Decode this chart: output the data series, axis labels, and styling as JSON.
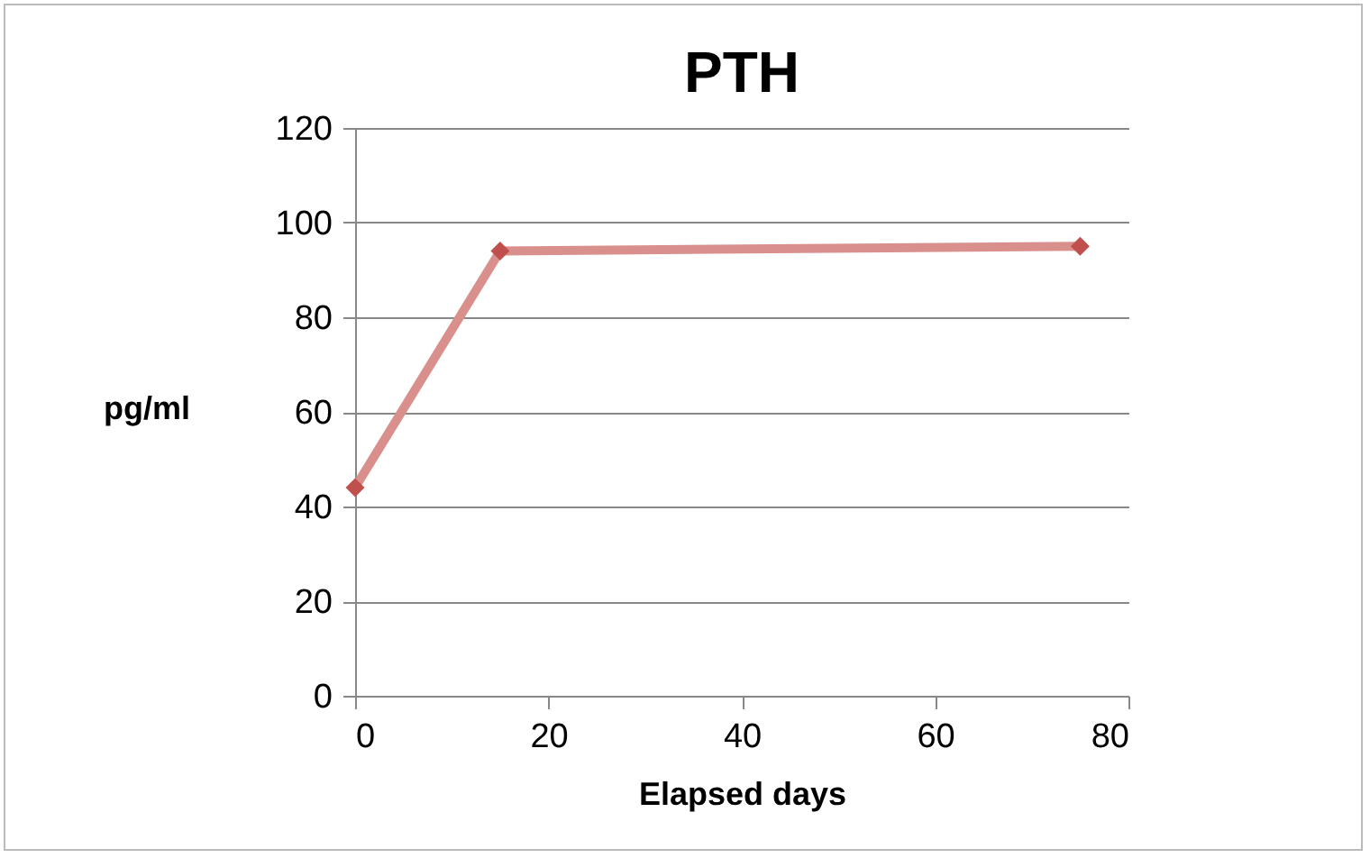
{
  "chart_data": {
    "type": "line",
    "title": "PTH",
    "xlabel": "Elapsed days",
    "ylabel": "pg/ml",
    "x": [
      0,
      15,
      75
    ],
    "series": [
      {
        "color": "#d9908d",
        "values": [
          44,
          94,
          95
        ]
      }
    ],
    "xlim": [
      0,
      80
    ],
    "xticks": [
      0,
      20,
      40,
      60,
      80
    ],
    "ylim": [
      0,
      120
    ],
    "yticks": [
      0,
      20,
      40,
      60,
      80,
      100,
      120
    ],
    "grid": "y",
    "marker": "diamond",
    "line_style": "solid"
  }
}
